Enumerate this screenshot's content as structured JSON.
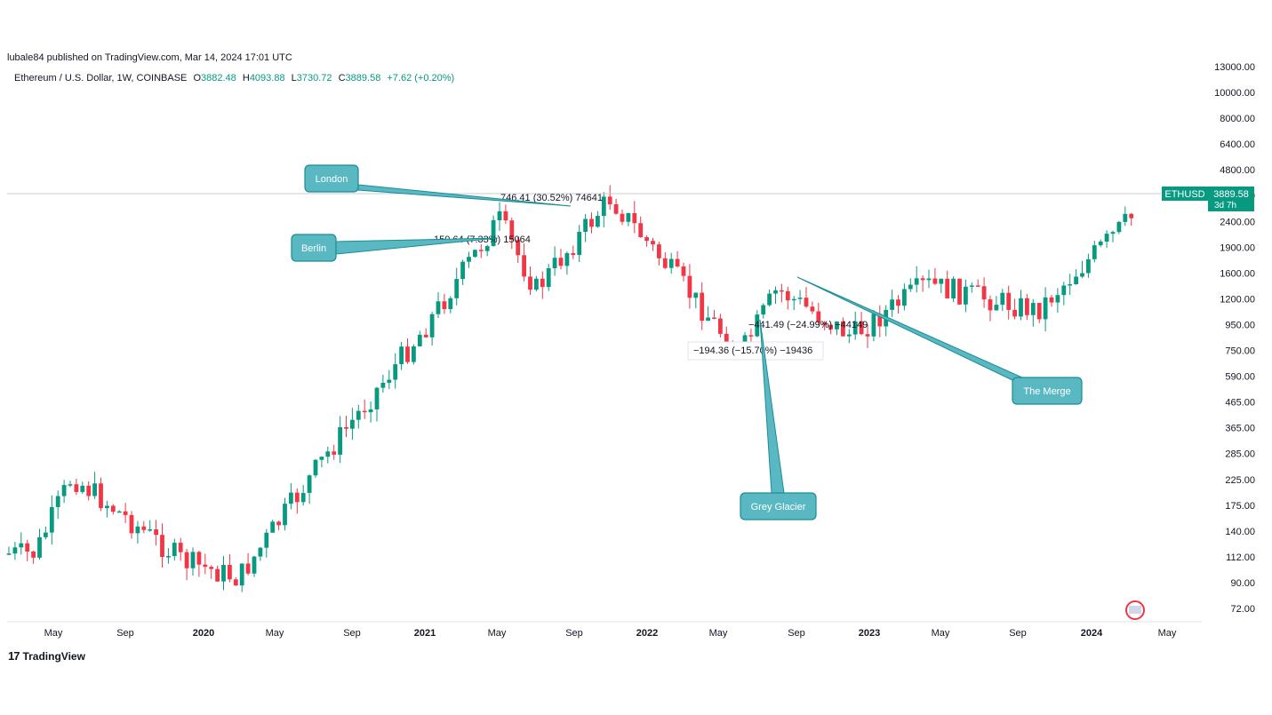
{
  "header": {
    "published": "lubale84 published on TradingView.com, Mar 14, 2024 17:01 UTC",
    "symbol": "Ethereum / U.S. Dollar, 1W, COINBASE",
    "open_label": "O",
    "open": "3882.48",
    "high_label": "H",
    "high": "4093.88",
    "low_label": "L",
    "low": "3730.72",
    "close_label": "C",
    "close": "3889.58",
    "change": "+7.62 (+0.20%)"
  },
  "colors": {
    "up": "#089981",
    "down": "#f23645",
    "callout": "#5ab8c2",
    "callout_border": "#1b8d96",
    "line": "#1b8d96"
  },
  "price_tag": {
    "symbol": "ETHUSD",
    "price": "3889.58",
    "countdown": "3d 7h"
  },
  "footer": {
    "brand": "TradingView",
    "brand_icon": "tradingview-logo-icon",
    "flag_icon": "us-flag-icon"
  },
  "chart_data": {
    "type": "candlestick",
    "title": "Ethereum / U.S. Dollar, 1W, COINBASE",
    "y_scale": "log",
    "ylim": [
      65,
      14000
    ],
    "y_ticks": [
      "13000.00",
      "10000.00",
      "8000.00",
      "6400.00",
      "4800.00",
      "3000.00",
      "2400.00",
      "1900.00",
      "1600.00",
      "1200.00",
      "950.00",
      "750.00",
      "590.00",
      "465.00",
      "365.00",
      "285.00",
      "225.00",
      "175.00",
      "140.00",
      "112.00",
      "90.00",
      "72.00"
    ],
    "x_ticks": [
      "May",
      "Sep",
      "2020",
      "May",
      "Sep",
      "2021",
      "May",
      "Sep",
      "2022",
      "May",
      "Sep",
      "2023",
      "May",
      "Sep",
      "2024",
      "May"
    ],
    "x_tick_bold": [
      false,
      false,
      true,
      false,
      false,
      true,
      false,
      false,
      true,
      false,
      false,
      true,
      false,
      false,
      true,
      false
    ],
    "last_price": 3889.58,
    "key_points": [
      {
        "date": "2019-04",
        "price": 140
      },
      {
        "date": "2019-06",
        "price": 300
      },
      {
        "date": "2019-12",
        "price": 130
      },
      {
        "date": "2020-03",
        "price": 110
      },
      {
        "date": "2020-08",
        "price": 400
      },
      {
        "date": "2021-01",
        "price": 1300
      },
      {
        "date": "2021-05",
        "price": 3800
      },
      {
        "date": "2021-07",
        "price": 1900
      },
      {
        "date": "2021-11",
        "price": 4700
      },
      {
        "date": "2022-06",
        "price": 1000
      },
      {
        "date": "2022-08",
        "price": 1900
      },
      {
        "date": "2022-12",
        "price": 1200
      },
      {
        "date": "2023-04",
        "price": 2000
      },
      {
        "date": "2023-10",
        "price": 1550
      },
      {
        "date": "2024-03",
        "price": 3889.58
      }
    ],
    "measurements": [
      {
        "text": "746.41 (30.52%) 74641"
      },
      {
        "text": "150.64 (7.33%) 15064"
      },
      {
        "text": "−441.49 (−24.99%) −44149"
      },
      {
        "text": "−194.36 (−15.70%) −19436"
      }
    ],
    "annotations": [
      "London",
      "Berlin",
      "The Merge",
      "Grey Glacier"
    ]
  }
}
